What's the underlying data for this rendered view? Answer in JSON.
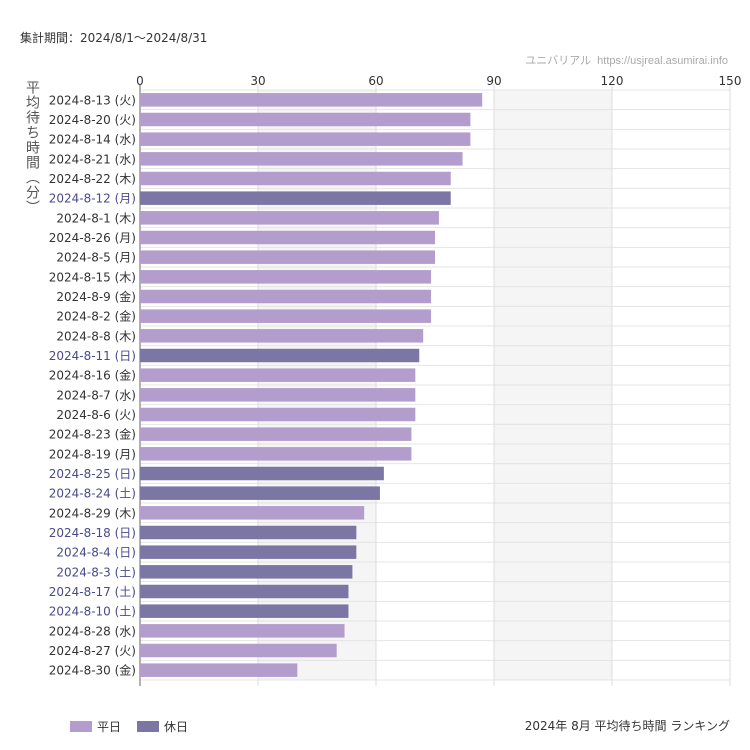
{
  "header": {
    "period": "集計期間：2024/8/1～2024/8/31",
    "site_name": "ユニバリアル",
    "site_url": "https://usjreal.asumirai.info"
  },
  "footer": {
    "title": "2024年 8月 平均待ち時間 ランキング"
  },
  "colors": {
    "weekday": "#b39dcc",
    "holiday": "#7c76a4",
    "holiday_label": "#4a4a8a",
    "weekday_label": "#333333"
  },
  "legend": [
    {
      "label": "平日",
      "type": "weekday"
    },
    {
      "label": "休日",
      "type": "holiday"
    }
  ],
  "chart_data": {
    "type": "bar",
    "orientation": "horizontal",
    "ylabel": "平均待ち時間（分）",
    "xlim": [
      0,
      150
    ],
    "xticks": [
      0,
      30,
      60,
      90,
      120,
      150
    ],
    "categories": [
      "2024-8-13 (火)",
      "2024-8-20 (火)",
      "2024-8-14 (水)",
      "2024-8-21 (水)",
      "2024-8-22 (木)",
      "2024-8-12 (月)",
      "2024-8-1 (木)",
      "2024-8-26 (月)",
      "2024-8-5 (月)",
      "2024-8-15 (木)",
      "2024-8-9 (金)",
      "2024-8-2 (金)",
      "2024-8-8 (木)",
      "2024-8-11 (日)",
      "2024-8-16 (金)",
      "2024-8-7 (水)",
      "2024-8-6 (火)",
      "2024-8-23 (金)",
      "2024-8-19 (月)",
      "2024-8-25 (日)",
      "2024-8-24 (土)",
      "2024-8-29 (木)",
      "2024-8-18 (日)",
      "2024-8-4 (日)",
      "2024-8-3 (土)",
      "2024-8-17 (土)",
      "2024-8-10 (土)",
      "2024-8-28 (水)",
      "2024-8-27 (火)",
      "2024-8-30 (金)"
    ],
    "values": [
      87,
      84,
      84,
      82,
      79,
      79,
      76,
      75,
      75,
      74,
      74,
      74,
      72,
      71,
      70,
      70,
      70,
      69,
      69,
      62,
      61,
      57,
      55,
      55,
      54,
      53,
      53,
      52,
      50,
      40
    ],
    "day_type": [
      "weekday",
      "weekday",
      "weekday",
      "weekday",
      "weekday",
      "holiday",
      "weekday",
      "weekday",
      "weekday",
      "weekday",
      "weekday",
      "weekday",
      "weekday",
      "holiday",
      "weekday",
      "weekday",
      "weekday",
      "weekday",
      "weekday",
      "holiday",
      "holiday",
      "weekday",
      "holiday",
      "holiday",
      "holiday",
      "holiday",
      "holiday",
      "weekday",
      "weekday",
      "weekday"
    ],
    "grid": true,
    "legend_position": "bottom-left"
  }
}
